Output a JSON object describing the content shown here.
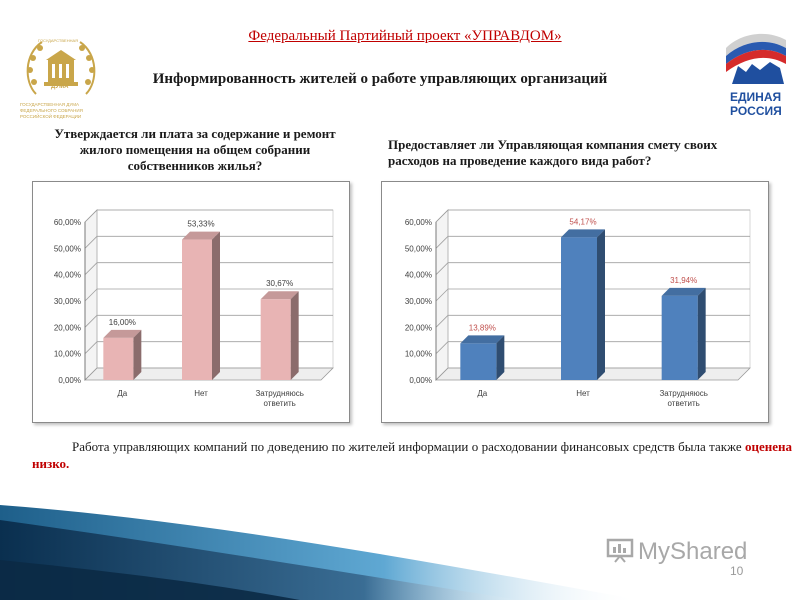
{
  "header": {
    "project_title": "Федеральный Партийный проект «УПРАВДОМ»",
    "slide_title": "Информированность жителей о работе управляющих организаций"
  },
  "left_logo": {
    "top_text": "ГОСУДАРСТВЕННАЯ",
    "center_text": "ДУМА",
    "bottom_text_1": "ГОСУДАРСТВЕННАЯ ДУМА",
    "bottom_text_2": "ФЕДЕРАЛЬНОГО СОБРАНИЯ",
    "bottom_text_3": "РОССИЙСКОЙ ФЕДЕРАЦИИ",
    "color": "#c9a64a"
  },
  "right_logo": {
    "line1": "ЕДИНАЯ",
    "line2": "РОССИЯ",
    "color": "#1f4f9f"
  },
  "questions": {
    "q1": "Утверждается ли плата за содержание и ремонт жилого помещения на общем собрании собственников жилья?",
    "q2": "Предоставляет ли Управляющая компания смету своих расходов на проведение каждого вида работ?"
  },
  "chart_data": [
    {
      "type": "bar",
      "categories": [
        "Да",
        "Нет",
        "Затрудняюсь ответить"
      ],
      "values": [
        16.0,
        53.33,
        30.67
      ],
      "value_labels": [
        "16,00%",
        "53,33%",
        "30,67%"
      ],
      "yticks": [
        "0,00%",
        "10,00%",
        "20,00%",
        "30,00%",
        "40,00%",
        "50,00%",
        "60,00%"
      ],
      "ylim": [
        0,
        60
      ],
      "bar_color": "#e8b4b4",
      "label_color": "#404040"
    },
    {
      "type": "bar",
      "categories": [
        "Да",
        "Нет",
        "Затрудняюсь ответить"
      ],
      "values": [
        13.89,
        54.17,
        31.94
      ],
      "value_labels": [
        "13,89%",
        "54,17%",
        "31,94%"
      ],
      "yticks": [
        "0,00%",
        "10,00%",
        "20,00%",
        "30,00%",
        "40,00%",
        "50,00%",
        "60,00%"
      ],
      "ylim": [
        0,
        60
      ],
      "bar_color": "#4f81bd",
      "label_color": "#c0504d"
    }
  ],
  "summary": {
    "text_before": "Работа управляющих компаний по доведению по жителей информации о расходовании финансовых средств была также ",
    "highlight": "оценена низко."
  },
  "footer": {
    "page_number": "10",
    "watermark": "MyShared"
  }
}
